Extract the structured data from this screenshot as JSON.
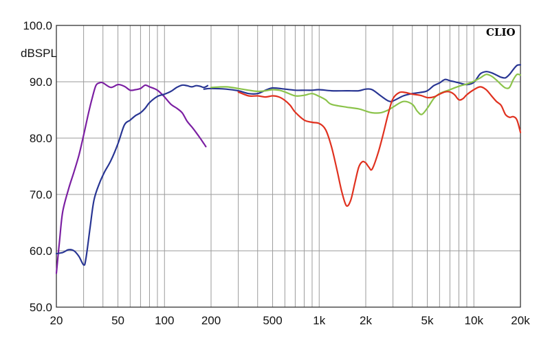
{
  "chart_data": {
    "type": "line",
    "brand": "CLIO",
    "ylabel": "dBSPL",
    "xscale": "log",
    "xlim": [
      20,
      20000
    ],
    "ylim": [
      50,
      100
    ],
    "grid": true,
    "x_ticks": [
      {
        "value": 20,
        "label": "20"
      },
      {
        "value": 50,
        "label": "50"
      },
      {
        "value": 100,
        "label": "100"
      },
      {
        "value": 200,
        "label": "200"
      },
      {
        "value": 500,
        "label": "500"
      },
      {
        "value": 1000,
        "label": "1k"
      },
      {
        "value": 2000,
        "label": "2k"
      },
      {
        "value": 5000,
        "label": "5k"
      },
      {
        "value": 10000,
        "label": "10k"
      },
      {
        "value": 20000,
        "label": "20k"
      }
    ],
    "y_ticks": [
      {
        "value": 50,
        "label": "50.0"
      },
      {
        "value": 60,
        "label": "60.0"
      },
      {
        "value": 70,
        "label": "70.0"
      },
      {
        "value": 80,
        "label": "80.0"
      },
      {
        "value": 90,
        "label": "90.0"
      },
      {
        "value": 100,
        "label": "100.0"
      }
    ],
    "series": [
      {
        "color": "#7b1fa2",
        "x": [
          20,
          21,
          22,
          24,
          26,
          28,
          30,
          32,
          34,
          36,
          38,
          40,
          45,
          50,
          55,
          60,
          65,
          70,
          75,
          80,
          90,
          100,
          110,
          120,
          130,
          140,
          150,
          160,
          170,
          180,
          185
        ],
        "y": [
          56,
          62,
          67,
          71,
          74,
          77,
          80.5,
          84,
          87,
          89.3,
          89.8,
          89.8,
          89,
          89.5,
          89.2,
          88.5,
          88.6,
          88.8,
          89.4,
          89.1,
          88.5,
          87.3,
          86,
          85.3,
          84.5,
          83,
          82,
          81,
          80,
          79,
          78.5
        ]
      },
      {
        "color": "#283593",
        "x": [
          20,
          22,
          24,
          26,
          28,
          30,
          31,
          33,
          35,
          38,
          41,
          45,
          50,
          55,
          60,
          65,
          70,
          75,
          80,
          90,
          100,
          110,
          120,
          130,
          140,
          150,
          160,
          170,
          180,
          190
        ],
        "y": [
          59.5,
          59.7,
          60.2,
          60,
          59,
          57.5,
          58.5,
          64,
          69,
          72,
          74,
          76,
          79,
          82.3,
          83.2,
          84,
          84.5,
          85.3,
          86.3,
          87.4,
          87.8,
          88.3,
          89,
          89.4,
          89.3,
          89.1,
          89.3,
          89.2,
          89,
          89.3
        ]
      },
      {
        "color": "#283593",
        "x": [
          180,
          200,
          250,
          300,
          350,
          400,
          450,
          500,
          600,
          700,
          800,
          900,
          1000,
          1200,
          1500,
          1800,
          2000,
          2200,
          2500,
          2800,
          3000,
          3500,
          4000,
          4500,
          5000,
          5500,
          6000,
          6500,
          7000,
          8000,
          9000,
          10000,
          11000,
          12000,
          13000,
          14000,
          15000,
          16000,
          17000,
          18000,
          19000,
          20000
        ],
        "y": [
          88.7,
          88.8,
          88.7,
          88.4,
          87.9,
          87.9,
          88.5,
          88.9,
          88.7,
          88.5,
          88.5,
          88.5,
          88.6,
          88.4,
          88.4,
          88.4,
          88.7,
          88.6,
          87.5,
          86.6,
          86.6,
          87.5,
          87.9,
          88.1,
          88.4,
          89.3,
          89.8,
          90.4,
          90.2,
          89.8,
          89.5,
          89.9,
          91.4,
          91.8,
          91.6,
          91.2,
          90.8,
          90.7,
          91.3,
          92.2,
          92.9,
          93
        ]
      },
      {
        "color": "#8bc34a",
        "x": [
          200,
          250,
          300,
          350,
          400,
          450,
          500,
          550,
          600,
          700,
          800,
          900,
          1000,
          1100,
          1200,
          1500,
          1800,
          2000,
          2200,
          2500,
          2800,
          3000,
          3500,
          4000,
          4300,
          4600,
          5000,
          5500,
          6000,
          7000,
          8000,
          9000,
          10000,
          11000,
          12000,
          13000,
          14000,
          15000,
          16000,
          17000,
          18000,
          19000,
          20000
        ],
        "y": [
          89,
          89.1,
          88.8,
          88.5,
          88.3,
          88.4,
          88.6,
          88.5,
          88.2,
          87.5,
          87.6,
          87.9,
          87.4,
          86.8,
          86,
          85.5,
          85.2,
          84.8,
          84.5,
          84.5,
          85,
          85.5,
          86.5,
          86,
          84.8,
          84.2,
          85.3,
          87,
          87.9,
          88.6,
          89.2,
          89.6,
          90.1,
          90.7,
          91.3,
          91,
          90.3,
          89.5,
          88.9,
          89,
          90.4,
          91.3,
          91.2
        ]
      },
      {
        "color": "#e0311f",
        "x": [
          300,
          350,
          400,
          450,
          500,
          550,
          600,
          650,
          700,
          800,
          900,
          1000,
          1100,
          1200,
          1300,
          1400,
          1500,
          1600,
          1700,
          1800,
          1900,
          2000,
          2100,
          2200,
          2400,
          2600,
          2800,
          3000,
          3300,
          3600,
          4000,
          4500,
          5000,
          5500,
          6000,
          6500,
          7000,
          7500,
          8000,
          8500,
          9000,
          10000,
          11000,
          12000,
          13000,
          14000,
          15000,
          16000,
          17000,
          18000,
          19000,
          20000
        ],
        "y": [
          88.2,
          87.5,
          87.5,
          87.3,
          87.5,
          87.3,
          86.7,
          85.8,
          84.6,
          83.2,
          82.8,
          82.6,
          81.5,
          78.5,
          74.5,
          70.5,
          68,
          69,
          72,
          74.8,
          75.8,
          75.6,
          74.8,
          74.5,
          77.3,
          80.8,
          84.4,
          87,
          88.1,
          88.1,
          87.8,
          87.6,
          87.2,
          87.3,
          87.8,
          88.2,
          88.2,
          87.7,
          86.8,
          87,
          87.7,
          88.6,
          89.1,
          88.6,
          87.5,
          86.5,
          85.8,
          84.2,
          83.7,
          83.8,
          83.2,
          81
        ]
      }
    ]
  }
}
